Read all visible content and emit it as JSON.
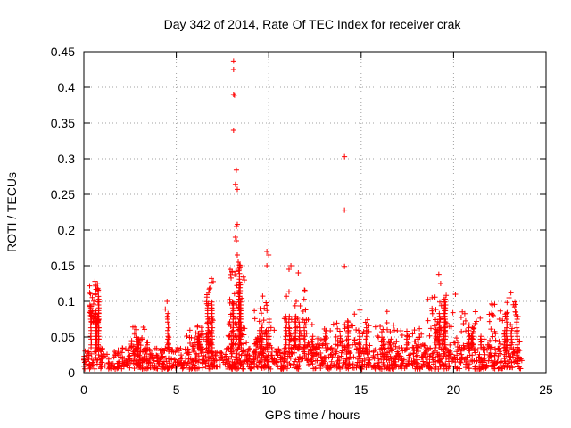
{
  "chart_data": {
    "type": "scatter",
    "title": "Day 342 of 2014, Rate Of TEC Index for receiver crak",
    "xlabel": "GPS time / hours",
    "ylabel": "ROTI / TECUs",
    "xlim": [
      0,
      25
    ],
    "ylim": [
      0,
      0.45
    ],
    "xticks": [
      0,
      5,
      10,
      15,
      20,
      25
    ],
    "xtick_labels": [
      "0",
      "5",
      "10",
      "15",
      "20",
      "25"
    ],
    "yticks": [
      0,
      0.05,
      0.1,
      0.15,
      0.2,
      0.25,
      0.3,
      0.35,
      0.4,
      0.45
    ],
    "ytick_labels": [
      "0",
      "0.05",
      "0.1",
      "0.15",
      "0.2",
      "0.25",
      "0.3",
      "0.35",
      "0.4",
      "0.45"
    ],
    "grid": true,
    "marker": "+",
    "color": "#ff0000",
    "x_data_extent": [
      0,
      23.7
    ],
    "baseline": {
      "min": 0.005,
      "max": 0.035
    },
    "clusters": [
      {
        "x": [
          0.3,
          0.8
        ],
        "y": [
          0.07,
          0.13
        ],
        "density": 50
      },
      {
        "x": [
          2.5,
          3.5
        ],
        "y": [
          0.035,
          0.07
        ],
        "density": 25
      },
      {
        "x": [
          4.4,
          4.6
        ],
        "y": [
          0.035,
          0.1
        ],
        "density": 8
      },
      {
        "x": [
          5.5,
          6.5
        ],
        "y": [
          0.035,
          0.07
        ],
        "density": 25
      },
      {
        "x": [
          6.6,
          7.0
        ],
        "y": [
          0.04,
          0.13
        ],
        "density": 35
      },
      {
        "x": [
          7.8,
          8.8
        ],
        "y": [
          0.04,
          0.16
        ],
        "density": 55
      },
      {
        "x": [
          9.2,
          10.3
        ],
        "y": [
          0.035,
          0.11
        ],
        "density": 35
      },
      {
        "x": [
          10.8,
          12.2
        ],
        "y": [
          0.035,
          0.12
        ],
        "density": 50
      },
      {
        "x": [
          12.2,
          14.0
        ],
        "y": [
          0.035,
          0.07
        ],
        "density": 35
      },
      {
        "x": [
          14.0,
          15.5
        ],
        "y": [
          0.035,
          0.09
        ],
        "density": 30
      },
      {
        "x": [
          15.5,
          18.5
        ],
        "y": [
          0.035,
          0.07
        ],
        "density": 45
      },
      {
        "x": [
          18.6,
          19.6
        ],
        "y": [
          0.04,
          0.11
        ],
        "density": 40
      },
      {
        "x": [
          19.6,
          21.5
        ],
        "y": [
          0.035,
          0.09
        ],
        "density": 40
      },
      {
        "x": [
          21.5,
          23.6
        ],
        "y": [
          0.035,
          0.1
        ],
        "density": 50
      }
    ],
    "outliers": [
      {
        "x": 8.1,
        "y": 0.437
      },
      {
        "x": 8.1,
        "y": 0.425
      },
      {
        "x": 8.1,
        "y": 0.39
      },
      {
        "x": 8.15,
        "y": 0.389
      },
      {
        "x": 8.1,
        "y": 0.34
      },
      {
        "x": 8.25,
        "y": 0.284
      },
      {
        "x": 8.2,
        "y": 0.264
      },
      {
        "x": 8.3,
        "y": 0.257
      },
      {
        "x": 8.3,
        "y": 0.208
      },
      {
        "x": 8.25,
        "y": 0.205
      },
      {
        "x": 8.2,
        "y": 0.19
      },
      {
        "x": 8.25,
        "y": 0.185
      },
      {
        "x": 8.3,
        "y": 0.165
      },
      {
        "x": 8.35,
        "y": 0.155
      },
      {
        "x": 8.4,
        "y": 0.145
      },
      {
        "x": 14.1,
        "y": 0.303
      },
      {
        "x": 14.1,
        "y": 0.228
      },
      {
        "x": 14.1,
        "y": 0.149
      },
      {
        "x": 9.9,
        "y": 0.17
      },
      {
        "x": 9.9,
        "y": 0.15
      },
      {
        "x": 10.0,
        "y": 0.165
      },
      {
        "x": 11.2,
        "y": 0.15
      },
      {
        "x": 11.1,
        "y": 0.145
      },
      {
        "x": 11.6,
        "y": 0.14
      },
      {
        "x": 19.2,
        "y": 0.138
      },
      {
        "x": 19.3,
        "y": 0.125
      },
      {
        "x": 20.1,
        "y": 0.11
      },
      {
        "x": 23.1,
        "y": 0.112
      },
      {
        "x": 23.0,
        "y": 0.105
      },
      {
        "x": 4.5,
        "y": 0.1
      },
      {
        "x": 4.5,
        "y": 0.078
      },
      {
        "x": 16.4,
        "y": 0.086
      },
      {
        "x": 0.6,
        "y": 0.128
      },
      {
        "x": 6.9,
        "y": 0.132
      },
      {
        "x": 22.1,
        "y": 0.095
      }
    ]
  }
}
